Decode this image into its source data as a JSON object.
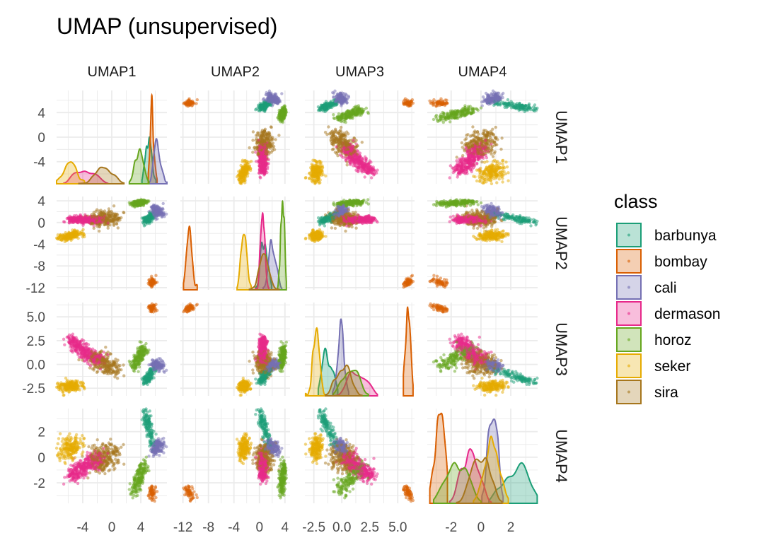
{
  "chart_data": {
    "type": "scatter",
    "title": "UMAP (unsupervised)",
    "variables": [
      "UMAP1",
      "UMAP2",
      "UMAP3",
      "UMAP4"
    ],
    "diagonal": "density",
    "grid": true,
    "axes": {
      "UMAP1": {
        "range": [
          -7.6,
          7.6
        ],
        "ticks": [
          -4,
          0,
          4
        ],
        "tick_labels": [
          "-4",
          "0",
          "4"
        ],
        "minor": [
          -6,
          -2,
          2,
          6
        ]
      },
      "UMAP2": {
        "range": [
          -12.4,
          4.8
        ],
        "ticks": [
          -12,
          -8,
          -4,
          0,
          4
        ],
        "tick_labels": [
          "-12",
          "-8",
          "-4",
          "0",
          "4"
        ],
        "minor": [
          -10,
          -6,
          -2,
          2
        ]
      },
      "UMAP3": {
        "range": [
          -3.3,
          6.5
        ],
        "ticks": [
          -2.5,
          0,
          2.5,
          5
        ],
        "tick_labels": [
          "-2.5",
          "0.0",
          "2.5",
          "5.0"
        ],
        "minor": [
          -1.25,
          1.25,
          3.75,
          6.25
        ]
      },
      "UMAP4": {
        "range": [
          -3.6,
          3.8
        ],
        "ticks": [
          -2,
          0,
          2
        ],
        "tick_labels": [
          "-2",
          "0",
          "2"
        ],
        "minor": [
          -3,
          -1,
          1,
          3
        ]
      }
    },
    "legend": {
      "title": "class",
      "position": "right",
      "items": [
        {
          "label": "barbunya",
          "color": "#1B9E77"
        },
        {
          "label": "bombay",
          "color": "#D95F02"
        },
        {
          "label": "cali",
          "color": "#7570B3"
        },
        {
          "label": "dermason",
          "color": "#E7298A"
        },
        {
          "label": "horoz",
          "color": "#66A61E"
        },
        {
          "label": "seker",
          "color": "#E6AB02"
        },
        {
          "label": "sira",
          "color": "#A6761D"
        }
      ]
    },
    "clusters": [
      {
        "class": "barbunya",
        "skeleton": [
          [
            5.6,
            1.5,
            -0.6,
            1.0
          ],
          [
            5.0,
            0.6,
            -1.3,
            2.4
          ],
          [
            4.7,
            0.2,
            -1.9,
            3.5
          ]
        ],
        "spread": [
          0.3,
          0.3,
          0.2,
          0.2
        ]
      },
      {
        "class": "bombay",
        "skeleton": [
          [
            5.5,
            -10.6,
            6.2,
            -3.3
          ],
          [
            5.5,
            -11.4,
            5.7,
            -2.3
          ]
        ],
        "spread": [
          0.22,
          0.3,
          0.15,
          0.12
        ]
      },
      {
        "class": "cali",
        "skeleton": [
          [
            5.9,
            2.6,
            0.1,
            0.5
          ],
          [
            6.6,
            1.4,
            -0.3,
            1.1
          ]
        ],
        "spread": [
          0.4,
          0.4,
          0.25,
          0.25
        ]
      },
      {
        "class": "dermason",
        "skeleton": [
          [
            -5.9,
            0.5,
            2.8,
            -1.6
          ],
          [
            -4.5,
            0.6,
            1.8,
            -1.0
          ],
          [
            -3.0,
            0.5,
            1.0,
            -0.5
          ],
          [
            -1.8,
            0.4,
            0.3,
            0.1
          ]
        ],
        "spread": [
          0.5,
          0.35,
          0.35,
          0.35
        ]
      },
      {
        "class": "horoz",
        "skeleton": [
          [
            3.0,
            3.4,
            -0.2,
            -2.7
          ],
          [
            4.5,
            3.8,
            1.8,
            -0.6
          ]
        ],
        "spread": [
          0.35,
          0.25,
          0.35,
          0.3
        ]
      },
      {
        "class": "seker",
        "skeleton": [
          [
            -6.8,
            -3.0,
            -2.4,
            0.6
          ],
          [
            -4.8,
            -1.9,
            -2.2,
            0.9
          ]
        ],
        "spread": [
          0.55,
          0.3,
          0.3,
          0.45
        ]
      },
      {
        "class": "sira",
        "skeleton": [
          [
            -2.5,
            0.2,
            0.8,
            -0.3
          ],
          [
            0.5,
            1.0,
            -0.5,
            0.3
          ]
        ],
        "spread": [
          0.75,
          0.7,
          0.45,
          0.55
        ]
      }
    ]
  }
}
